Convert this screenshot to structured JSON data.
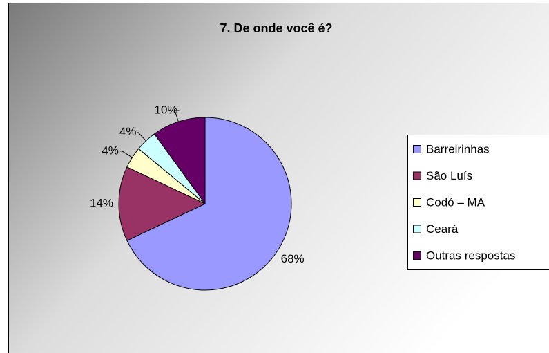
{
  "chart_data": {
    "type": "pie",
    "title": "7. De onde você é?",
    "categories": [
      "Barreirinhas",
      "São Luís",
      "Codó – MA",
      "Ceará",
      "Outras respostas"
    ],
    "values": [
      68,
      14,
      4,
      4,
      10
    ],
    "value_labels": [
      "68%",
      "14%",
      "4%",
      "4%",
      "10%"
    ],
    "colors": [
      "#9999ff",
      "#993366",
      "#ffffcc",
      "#ccffff",
      "#660066"
    ],
    "legend": "right"
  }
}
